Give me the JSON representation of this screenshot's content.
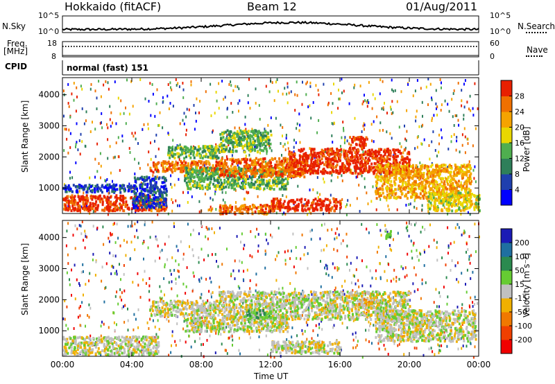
{
  "header": {
    "station": "Hokkaido (fitACF)",
    "beam": "Beam 12",
    "date": "01/Aug/2011"
  },
  "top_panels": {
    "nsky_label": "N.Sky",
    "nsky_ticks": [
      "10^5",
      "10^0"
    ],
    "nsearch_label": "N.Search",
    "nsearch_ticks": [
      "10^5",
      "10^0"
    ],
    "freq_label_1": "Freq.",
    "freq_label_2": "[MHz]",
    "freq_ticks": [
      "18",
      "8"
    ],
    "nave_label": "Nave",
    "nave_ticks": [
      "60",
      "0"
    ],
    "cpid_label": "CPID",
    "cpid_text": "normal (fast) 151"
  },
  "chart_data": [
    {
      "type": "heatmap",
      "title": "",
      "xlabel": "Time UT",
      "ylabel": "Slant Range [km]",
      "x_ticks": [
        "00:00",
        "04:00",
        "08:00",
        "12:00",
        "16:00",
        "20:00",
        "00:00"
      ],
      "xlim": [
        0,
        24
      ],
      "y_ticks": [
        1000,
        2000,
        3000,
        4000
      ],
      "ylim": [
        180,
        4550
      ],
      "colorbar_label": "Power [dB]",
      "colorbar_ticks": [
        4,
        8,
        12,
        16,
        20,
        24,
        28
      ],
      "colorbar_colors": [
        "#0000ff",
        "#1f3fae",
        "#2e7f5a",
        "#4fae4f",
        "#e9d700",
        "#f5a300",
        "#f07000",
        "#e82000"
      ],
      "regions": [
        {
          "t0": 0.0,
          "t1": 5.0,
          "r0": 300,
          "r1": 800,
          "level": 7
        },
        {
          "t0": 5.0,
          "t1": 6.0,
          "r0": 300,
          "r1": 700,
          "level": 6
        },
        {
          "t0": 0.0,
          "t1": 4.0,
          "r0": 900,
          "r1": 1150,
          "level": 1
        },
        {
          "t0": 4.0,
          "t1": 6.0,
          "r0": 400,
          "r1": 1400,
          "level": 1
        },
        {
          "t0": 5.0,
          "t1": 9.0,
          "r0": 1550,
          "r1": 1900,
          "level": 6
        },
        {
          "t0": 7.0,
          "t1": 13.0,
          "r0": 1000,
          "r1": 1700,
          "level": 3
        },
        {
          "t0": 9.0,
          "t1": 14.0,
          "r0": 1400,
          "r1": 2000,
          "level": 6
        },
        {
          "t0": 13.0,
          "t1": 20.0,
          "r0": 1500,
          "r1": 2300,
          "level": 7
        },
        {
          "t0": 16.5,
          "t1": 17.5,
          "r0": 2300,
          "r1": 2700,
          "level": 7
        },
        {
          "t0": 18.0,
          "t1": 23.5,
          "r0": 700,
          "r1": 1800,
          "level": 5
        },
        {
          "t0": 12.0,
          "t1": 16.0,
          "r0": 300,
          "r1": 700,
          "level": 7
        },
        {
          "t0": 9.0,
          "t1": 12.0,
          "r0": 200,
          "r1": 500,
          "level": 6
        },
        {
          "t0": 6.0,
          "t1": 9.0,
          "r0": 2000,
          "r1": 2400,
          "level": 3
        },
        {
          "t0": 9.0,
          "t1": 12.0,
          "r0": 2200,
          "r1": 2900,
          "level": 3
        },
        {
          "t0": 21.0,
          "t1": 24.0,
          "r0": 300,
          "r1": 900,
          "level": 4
        }
      ]
    },
    {
      "type": "heatmap",
      "title": "",
      "xlabel": "Time UT",
      "ylabel": "Slant Range [km]",
      "x_ticks": [
        "00:00",
        "04:00",
        "08:00",
        "12:00",
        "16:00",
        "20:00",
        "00:00"
      ],
      "xlim": [
        0,
        24
      ],
      "y_ticks": [
        1000,
        2000,
        3000,
        4000
      ],
      "ylim": [
        180,
        4550
      ],
      "colorbar_label": "Velocity [m s-1]",
      "colorbar_ticks": [
        200,
        100,
        50,
        15,
        -15,
        -50,
        -100,
        -200
      ],
      "colorbar_colors": [
        "#1b1bb5",
        "#1f6fa0",
        "#2b8a4f",
        "#66cc33",
        "#c0c0c0",
        "#f0b000",
        "#f07800",
        "#f04000",
        "#f00000"
      ],
      "regions": [
        {
          "t0": 0.0,
          "t1": 5.5,
          "r0": 250,
          "r1": 850,
          "level": 4
        },
        {
          "t0": 5.0,
          "t1": 9.0,
          "r0": 1500,
          "r1": 2000,
          "level": 4
        },
        {
          "t0": 9.0,
          "t1": 20.0,
          "r0": 1400,
          "r1": 2300,
          "level": 4
        },
        {
          "t0": 18.0,
          "t1": 23.8,
          "r0": 700,
          "r1": 1700,
          "level": 4
        },
        {
          "t0": 7.0,
          "t1": 13.0,
          "r0": 1000,
          "r1": 1500,
          "level": 4
        },
        {
          "t0": 12.0,
          "t1": 16.0,
          "r0": 300,
          "r1": 700,
          "level": 4
        },
        {
          "t0": 10.5,
          "t1": 12.0,
          "r0": 1450,
          "r1": 1700,
          "level": 3
        },
        {
          "t0": 13.0,
          "t1": 14.0,
          "r0": 1900,
          "r1": 2100,
          "level": 3
        },
        {
          "t0": 17.0,
          "t1": 18.0,
          "r0": 1850,
          "r1": 2050,
          "level": 5
        },
        {
          "t0": 14.5,
          "t1": 15.0,
          "r0": 500,
          "r1": 650,
          "level": 5
        },
        {
          "t0": 18.5,
          "t1": 19.0,
          "r0": 4000,
          "r1": 4300,
          "level": 3
        }
      ]
    }
  ],
  "colorbar_ticks_power": [
    "28",
    "24",
    "20",
    "16",
    "12",
    "8",
    "4"
  ],
  "colorbar_ticks_velocity": [
    "200",
    "100",
    "50",
    "15",
    "-15",
    "-50",
    "-100",
    "-200"
  ],
  "x_tick_labels": [
    "00:00",
    "04:00",
    "08:00",
    "12:00",
    "16:00",
    "20:00",
    "00:00"
  ],
  "y_tick_labels": [
    "1000",
    "2000",
    "3000",
    "4000"
  ],
  "xlabel": "Time UT",
  "ylabel_text": "Slant Range [km]",
  "power_cb_label": "Power [dB]",
  "velocity_cb_label": "Velocity [m s⁻¹]"
}
